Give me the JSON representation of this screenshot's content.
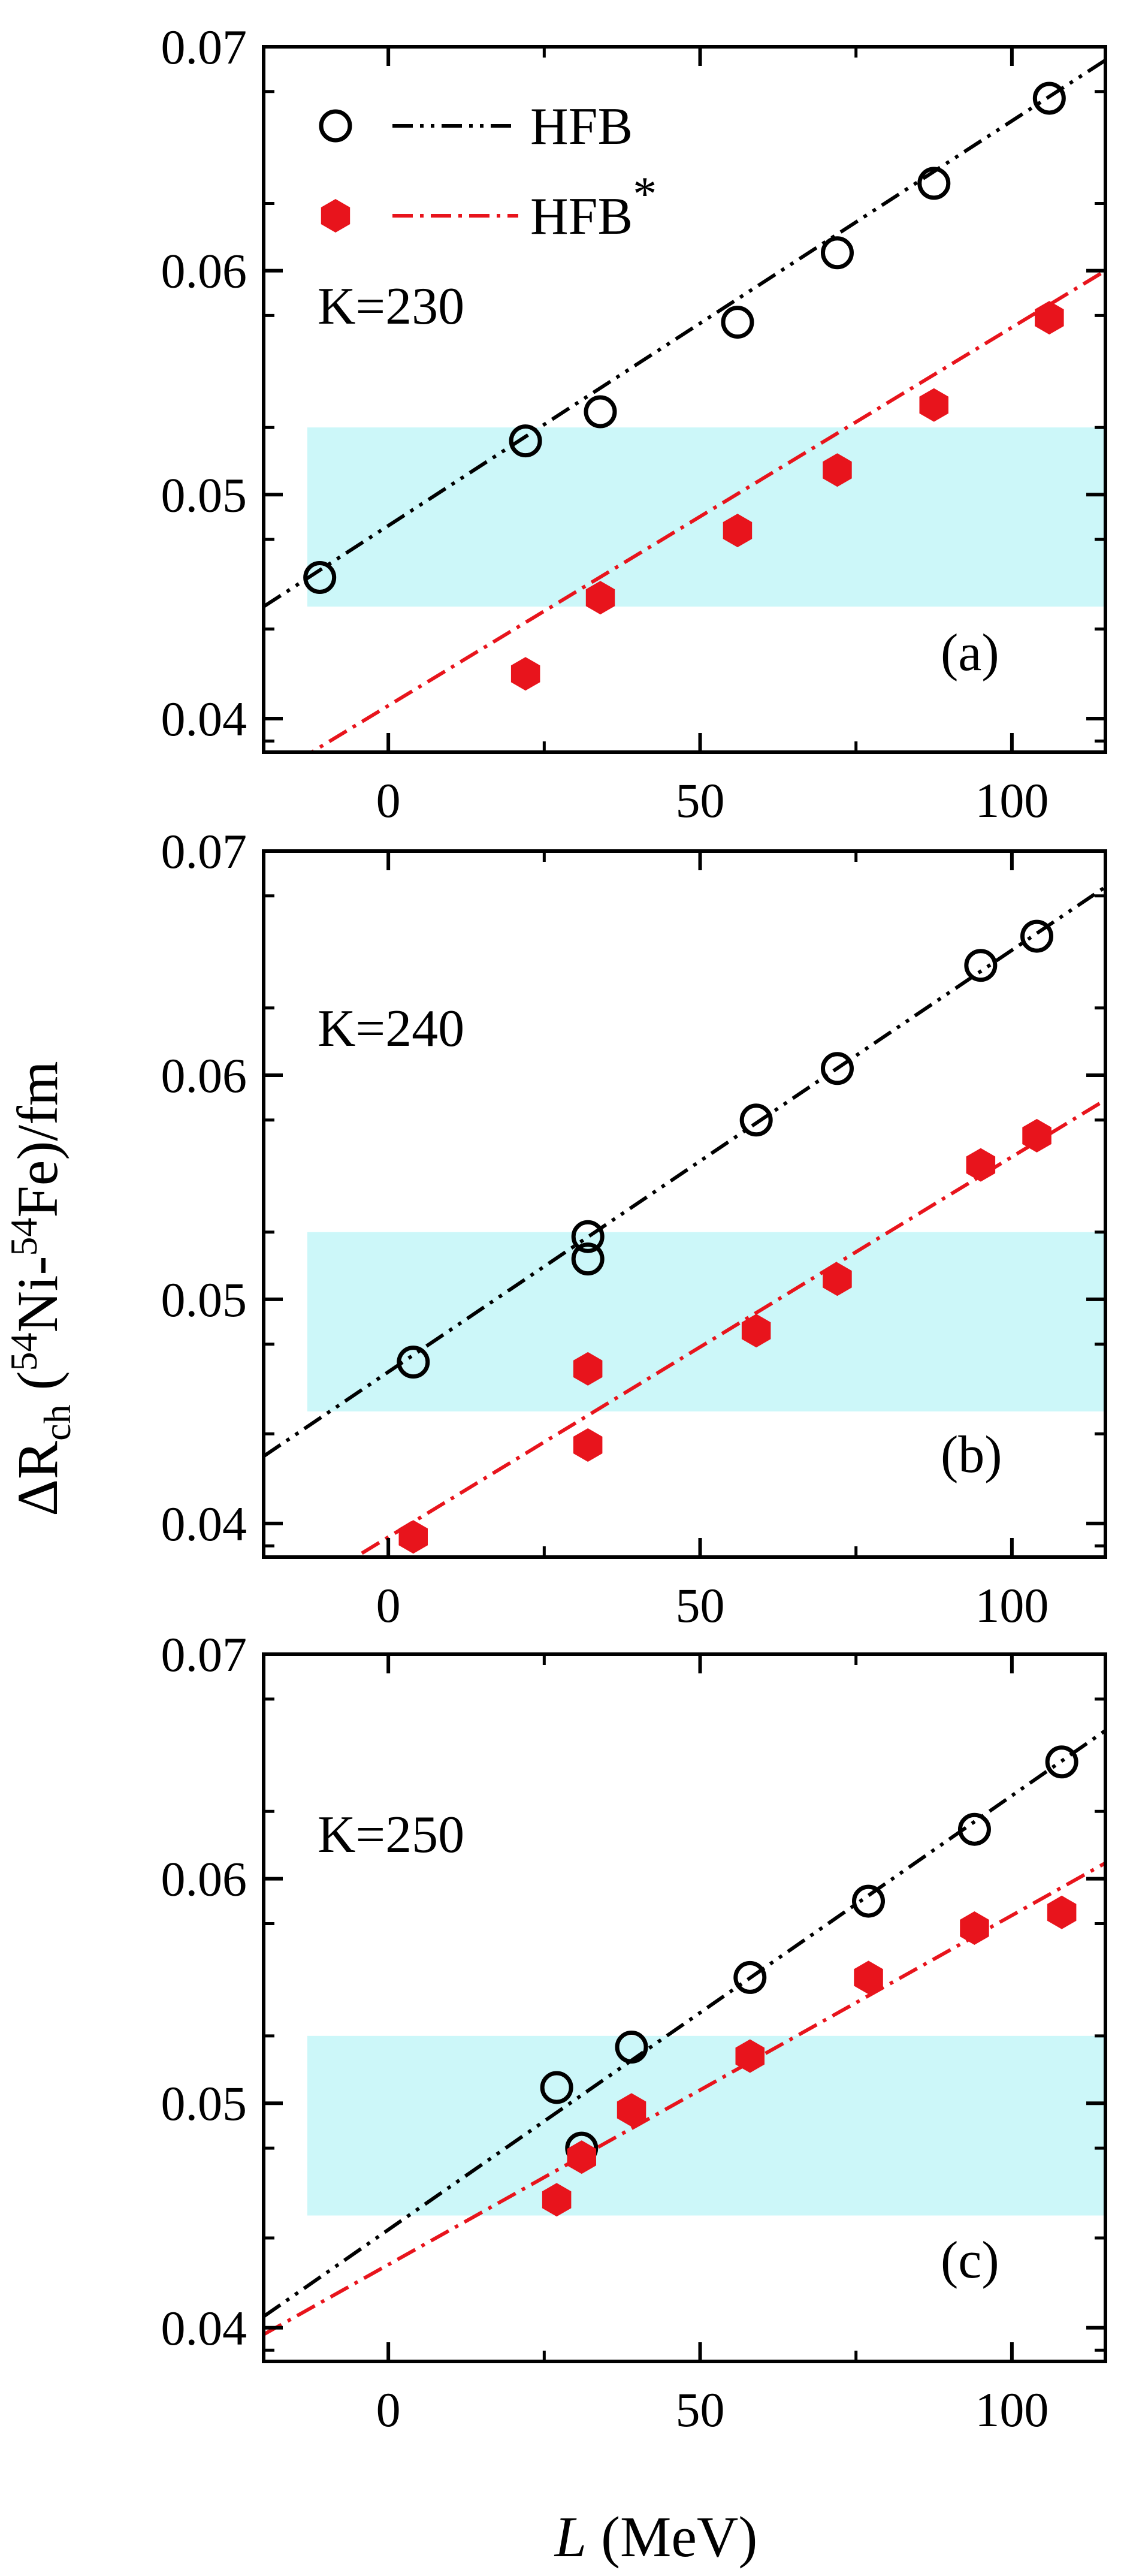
{
  "chart_data": {
    "type": "scatter",
    "shared": {
      "xlabel_var": "L",
      "xlabel_unit": " (MeV)",
      "ylabel": {
        "prefix": "ΔR",
        "sub": "ch",
        "part1": " (",
        "sup1": "54",
        "part2": "Ni-",
        "sup2": "54",
        "part3": "Fe)/fm"
      },
      "xlim": [
        -20,
        115
      ],
      "ylim": [
        0.0385,
        0.07
      ],
      "xticks": [
        0,
        50,
        100
      ],
      "xtick_labels": [
        "0",
        "50",
        "100"
      ],
      "yticks": [
        0.04,
        0.05,
        0.06,
        0.07
      ],
      "ytick_labels": [
        "0.04",
        "0.05",
        "0.06",
        "0.07"
      ],
      "band": {
        "y": [
          0.045,
          0.053
        ],
        "x": [
          -13,
          115
        ],
        "color": "#ccf7f9"
      },
      "series_styles": [
        {
          "key": "hfb",
          "color": "#000000",
          "marker": "open-circle",
          "line": "dash-dot-dot"
        },
        {
          "key": "hfb_star",
          "color": "#e8141c",
          "marker": "filled-hexagon",
          "line": "dash-dot"
        }
      ],
      "legend": {
        "placement": "top-left",
        "labels": [
          "HFB",
          "HFB"
        ],
        "label_sup": [
          "",
          "*"
        ]
      }
    },
    "panels": [
      {
        "label": "K=230",
        "tag": "(a)",
        "series": [
          {
            "name": "HFB",
            "x": [
              -11,
              22,
              34,
              56,
              72,
              87.5,
              106
            ],
            "y": [
              0.0463,
              0.0524,
              0.0537,
              0.0577,
              0.0608,
              0.0639,
              0.0677
            ],
            "fit": {
              "x": [
                -20,
                115
              ],
              "y": [
                0.045,
                0.0694
              ]
            }
          },
          {
            "name": "HFB*",
            "x": [
              22,
              34,
              56,
              72,
              87.5,
              106
            ],
            "y": [
              0.042,
              0.0454,
              0.0484,
              0.0511,
              0.054,
              0.0579
            ],
            "fit": {
              "x": [
                -20,
                115
              ],
              "y": [
                0.0372,
                0.06
              ]
            }
          }
        ]
      },
      {
        "label": "K=240",
        "tag": "(b)",
        "series": [
          {
            "name": "HFB",
            "x": [
              4,
              32,
              32,
              59,
              72,
              95,
              104
            ],
            "y": [
              0.0472,
              0.0528,
              0.0518,
              0.058,
              0.0603,
              0.0649,
              0.0662
            ],
            "fit": {
              "x": [
                -20,
                115
              ],
              "y": [
                0.043,
                0.0684
              ]
            }
          },
          {
            "name": "HFB*",
            "x": [
              4,
              32,
              32,
              59,
              72,
              95,
              104
            ],
            "y": [
              0.0394,
              0.0469,
              0.0435,
              0.0486,
              0.0509,
              0.056,
              0.0573
            ],
            "fit": {
              "x": [
                -20,
                115
              ],
              "y": [
                0.036,
                0.0589
              ]
            }
          }
        ]
      },
      {
        "label": "K=250",
        "tag": "(c)",
        "series": [
          {
            "name": "HFB",
            "x": [
              27,
              31,
              39,
              58,
              77,
              94,
              108
            ],
            "y": [
              0.0507,
              0.048,
              0.0525,
              0.0556,
              0.059,
              0.0622,
              0.0652
            ],
            "fit": {
              "x": [
                -20,
                115
              ],
              "y": [
                0.0405,
                0.0666
              ]
            }
          },
          {
            "name": "HFB*",
            "x": [
              27,
              31,
              39,
              58,
              77,
              94,
              108
            ],
            "y": [
              0.0457,
              0.0476,
              0.0497,
              0.0521,
              0.0556,
              0.0578,
              0.0585
            ],
            "fit": {
              "x": [
                -20,
                115
              ],
              "y": [
                0.0397,
                0.0607
              ]
            }
          }
        ]
      }
    ]
  }
}
